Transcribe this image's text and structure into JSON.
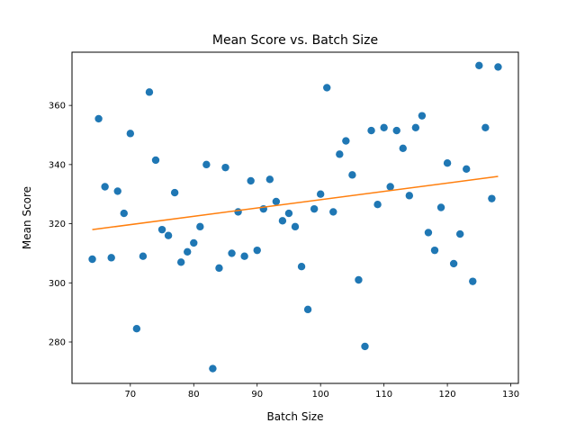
{
  "chart_data": {
    "type": "scatter",
    "title": "Mean Score vs. Batch Size",
    "xlabel": "Batch Size",
    "ylabel": "Mean Score",
    "xlim": [
      60.8,
      131.2
    ],
    "ylim": [
      266,
      378
    ],
    "xticks": [
      70,
      80,
      90,
      100,
      110,
      120,
      130
    ],
    "yticks": [
      280,
      300,
      320,
      340,
      360
    ],
    "grid": false,
    "legend": "none",
    "series": [
      {
        "kind": "scatter",
        "color": "#1f77b4",
        "points": [
          [
            64,
            308
          ],
          [
            65,
            355.5
          ],
          [
            66,
            332.5
          ],
          [
            67,
            308.5
          ],
          [
            68,
            331
          ],
          [
            69,
            323.5
          ],
          [
            70,
            350.5
          ],
          [
            71,
            284.5
          ],
          [
            72,
            309
          ],
          [
            73,
            364.5
          ],
          [
            74,
            341.5
          ],
          [
            75,
            318
          ],
          [
            76,
            316
          ],
          [
            77,
            330.5
          ],
          [
            78,
            307
          ],
          [
            79,
            310.5
          ],
          [
            80,
            313.5
          ],
          [
            81,
            319
          ],
          [
            82,
            340
          ],
          [
            83,
            271
          ],
          [
            84,
            305
          ],
          [
            85,
            339
          ],
          [
            86,
            310
          ],
          [
            87,
            324
          ],
          [
            88,
            309
          ],
          [
            89,
            334.5
          ],
          [
            90,
            311
          ],
          [
            91,
            325
          ],
          [
            92,
            335
          ],
          [
            93,
            327.5
          ],
          [
            94,
            321
          ],
          [
            95,
            323.5
          ],
          [
            96,
            319
          ],
          [
            97,
            305.5
          ],
          [
            98,
            291
          ],
          [
            99,
            325
          ],
          [
            100,
            330
          ],
          [
            101,
            366
          ],
          [
            102,
            324
          ],
          [
            103,
            343.5
          ],
          [
            104,
            348
          ],
          [
            105,
            336.5
          ],
          [
            106,
            301
          ],
          [
            107,
            278.5
          ],
          [
            108,
            351.5
          ],
          [
            109,
            326.5
          ],
          [
            110,
            352.5
          ],
          [
            111,
            332.5
          ],
          [
            112,
            351.5
          ],
          [
            113,
            345.5
          ],
          [
            114,
            329.5
          ],
          [
            115,
            352.5
          ],
          [
            116,
            356.5
          ],
          [
            117,
            317
          ],
          [
            118,
            311
          ],
          [
            119,
            325.5
          ],
          [
            120,
            340.5
          ],
          [
            121,
            306.5
          ],
          [
            122,
            316.5
          ],
          [
            123,
            338.5
          ],
          [
            124,
            300.5
          ],
          [
            125,
            373.5
          ],
          [
            126,
            352.5
          ],
          [
            127,
            328.5
          ],
          [
            128,
            373
          ]
        ]
      },
      {
        "kind": "line",
        "color": "#ff7f0e",
        "points": [
          [
            64,
            318
          ],
          [
            128,
            336
          ]
        ]
      }
    ]
  }
}
